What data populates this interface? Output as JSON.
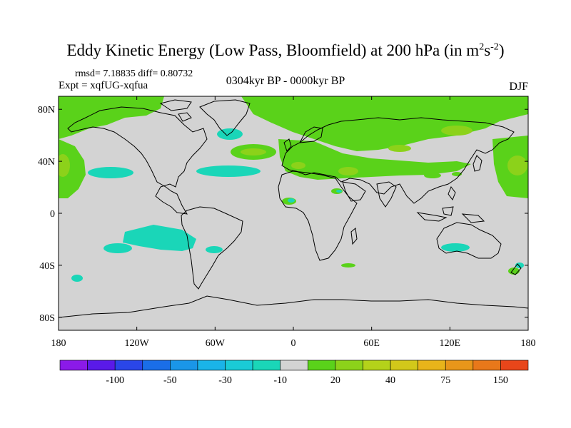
{
  "title": {
    "main": "Eddy Kinetic Energy (Low Pass, Bloomfield) at 200 hPa (in m",
    "sup1": "2",
    "mid": "s",
    "sup2": "-2",
    "end": ")"
  },
  "stats": "rmsd= 7.18835 diff= 0.80732",
  "expt": "Expt = xqfUG-xqfua",
  "period": "0304kyr BP - 0000kyr BP",
  "season": "DJF",
  "map": {
    "lon_range": [
      -180,
      180
    ],
    "lat_range": [
      -90,
      90
    ],
    "background_color": "#d3d3d3",
    "coastline_color": "#000000",
    "lat_ticks": [
      {
        "value": 80,
        "label": "80N"
      },
      {
        "value": 40,
        "label": "40N"
      },
      {
        "value": 0,
        "label": "0"
      },
      {
        "value": -40,
        "label": "40S"
      },
      {
        "value": -80,
        "label": "80S"
      }
    ],
    "lon_ticks": [
      {
        "value": -180,
        "label": "180"
      },
      {
        "value": -120,
        "label": "120W"
      },
      {
        "value": -60,
        "label": "60W"
      },
      {
        "value": 0,
        "label": "0"
      },
      {
        "value": 60,
        "label": "60E"
      },
      {
        "value": 120,
        "label": "120E"
      },
      {
        "value": 180,
        "label": "180"
      }
    ]
  },
  "colorbar": {
    "colors": [
      "#8b1ae8",
      "#5a1ae8",
      "#2a46e8",
      "#1a6ee8",
      "#1a96e8",
      "#1ab4e8",
      "#1acbd6",
      "#1ad6b8",
      "#d3d3d3",
      "#5ad21a",
      "#8cd21a",
      "#b4d21a",
      "#d2c81a",
      "#e8b41a",
      "#e8961a",
      "#e8781a",
      "#e8461a"
    ],
    "labels": [
      {
        "boundary": 2,
        "text": "-100"
      },
      {
        "boundary": 4,
        "text": "-50"
      },
      {
        "boundary": 6,
        "text": "-30"
      },
      {
        "boundary": 8,
        "text": "-10"
      },
      {
        "boundary": 10,
        "text": "20"
      },
      {
        "boundary": 12,
        "text": "40"
      },
      {
        "boundary": 14,
        "text": "75"
      },
      {
        "boundary": 16,
        "text": "150"
      }
    ]
  }
}
